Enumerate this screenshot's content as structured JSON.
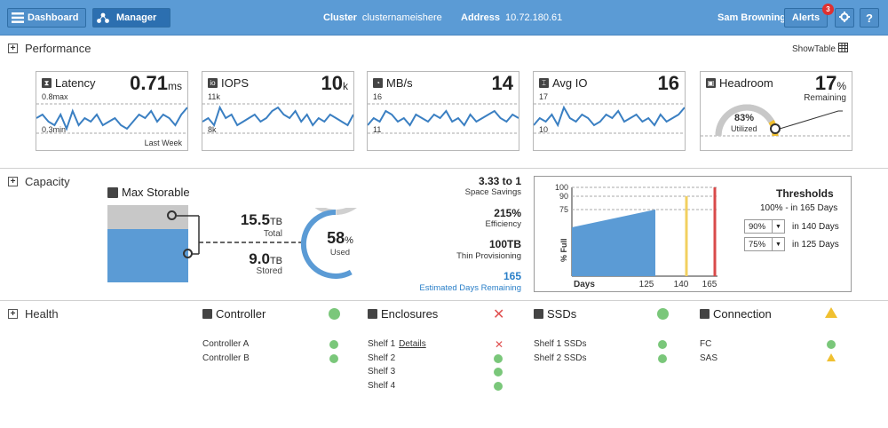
{
  "topbar": {
    "dashboard_label": "Dashboard",
    "manager_label": "Manager",
    "cluster_key": "Cluster",
    "cluster_value": "clusternameishere",
    "address_key": "Address",
    "address_value": "10.72.180.61",
    "user": "Sam Browning",
    "alerts_label": "Alerts",
    "alerts_count": "3",
    "help_label": "?"
  },
  "performance": {
    "title": "Performance",
    "show_table": "ShowTable",
    "cards": [
      {
        "name": "Latency",
        "value": "0.71",
        "unit": "ms",
        "top": "0.8max",
        "bottom": "0.3min",
        "footer": "Last Week",
        "icon": "hourglass-icon",
        "series": [
          5,
          6,
          4,
          3,
          6,
          2,
          7,
          3,
          5,
          4,
          6,
          3,
          4,
          5,
          3,
          2,
          4,
          6,
          5,
          7,
          4,
          6,
          5,
          3,
          6,
          8
        ]
      },
      {
        "name": "IOPS",
        "value": "10",
        "unit": "k",
        "top": "11k",
        "bottom": "8k",
        "footer": "",
        "icon": "io-icon",
        "series": [
          4,
          5,
          3,
          8,
          5,
          6,
          3,
          4,
          5,
          6,
          4,
          5,
          7,
          8,
          6,
          5,
          7,
          4,
          6,
          3,
          5,
          4,
          6,
          5,
          4,
          3,
          6
        ]
      },
      {
        "name": "MB/s",
        "value": "14",
        "unit": "",
        "top": "16",
        "bottom": "11",
        "footer": "",
        "icon": "gauge-icon",
        "series": [
          3,
          5,
          4,
          7,
          6,
          4,
          5,
          3,
          6,
          5,
          4,
          6,
          5,
          7,
          4,
          5,
          3,
          6,
          4,
          5,
          6,
          7,
          5,
          4,
          6,
          5
        ]
      },
      {
        "name": "Avg IO",
        "value": "16",
        "unit": "",
        "top": "17",
        "bottom": "10",
        "footer": "",
        "icon": "io-bracket-icon",
        "series": [
          3,
          5,
          4,
          6,
          3,
          8,
          5,
          4,
          6,
          5,
          3,
          4,
          6,
          5,
          7,
          4,
          5,
          6,
          4,
          5,
          3,
          6,
          4,
          5,
          6,
          8
        ]
      },
      {
        "name": "Headroom",
        "value": "17",
        "unit": "%",
        "top": "Remaining",
        "bottom": "",
        "footer": "",
        "icon": "person-icon",
        "gauge_value": "83%",
        "gauge_label": "Utilized",
        "gauge_fraction": 0.83
      }
    ]
  },
  "capacity": {
    "title": "Capacity",
    "max_storable": "Max Storable",
    "total_value": "15.5",
    "total_unit": "TB",
    "total_label": "Total",
    "stored_value": "9.0",
    "stored_unit": "TB",
    "stored_label": "Stored",
    "used_value": "58",
    "used_unit": "%",
    "used_label": "Used",
    "used_fraction": 0.58,
    "efficiency": [
      {
        "value": "3.33 to 1",
        "label": "Space Savings"
      },
      {
        "value": "215%",
        "label": "Efficiency"
      },
      {
        "value": "100TB",
        "label": "Thin Provisioning"
      }
    ],
    "days_remaining": "165",
    "days_label": "Estimated Days Remaining",
    "chart": {
      "yticks": [
        "100",
        "90",
        "75"
      ],
      "ylabel": "% Full",
      "xlabel": "Days",
      "xticks": [
        "125",
        "140",
        "165"
      ],
      "area_end_value": 75
    },
    "thresholds": {
      "title": "Thresholds",
      "row1": "100% - in 165 Days",
      "row2_select": "90%",
      "row2_text": "in 140 Days",
      "row3_select": "75%",
      "row3_text": "in 125 Days"
    },
    "colors": {
      "yellow": "#f2d060",
      "red": "#d94a4a",
      "blue": "#5b9bd5"
    }
  },
  "health": {
    "title": "Health",
    "groups": [
      {
        "title": "Controller",
        "status": "ok",
        "items": [
          {
            "name": "Controller A",
            "status": "ok"
          },
          {
            "name": "Controller B",
            "status": "ok"
          }
        ]
      },
      {
        "title": "Enclosures",
        "status": "error",
        "items": [
          {
            "name": "Shelf 1",
            "link": "Details",
            "status": "error"
          },
          {
            "name": "Shelf 2",
            "status": "ok"
          },
          {
            "name": "Shelf 3",
            "status": "ok"
          },
          {
            "name": "Shelf 4",
            "status": "ok"
          }
        ]
      },
      {
        "title": "SSDs",
        "status": "ok",
        "items": [
          {
            "name": "Shelf 1 SSDs",
            "status": "ok"
          },
          {
            "name": "Shelf 2 SSDs",
            "status": "ok"
          }
        ]
      },
      {
        "title": "Connection",
        "status": "warning",
        "items": [
          {
            "name": "FC",
            "status": "ok"
          },
          {
            "name": "SAS",
            "status": "warning"
          }
        ]
      }
    ]
  }
}
